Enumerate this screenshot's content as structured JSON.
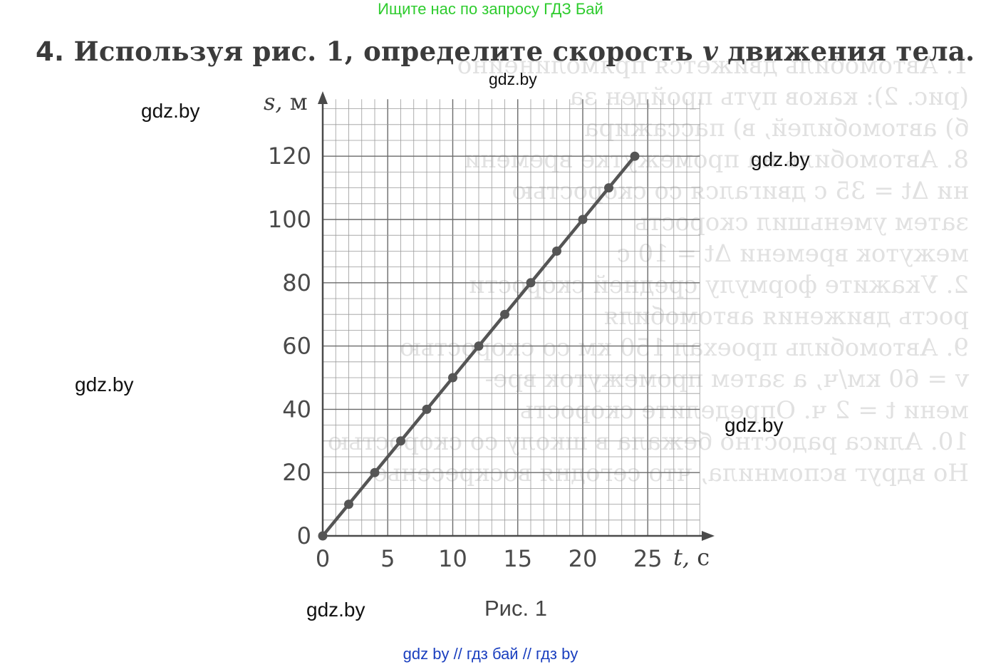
{
  "banner": "Ищите нас по запросу ГДЗ Бай",
  "task": {
    "number": "4.",
    "text": "Используя рис. 1, определите скорость",
    "variable": "v",
    "text_end": "движения тела."
  },
  "watermarks": [
    "gdz.by",
    "gdz.by",
    "gdz.by",
    "gdz.by",
    "gdz.by",
    "gdz.by"
  ],
  "footer": "gdz by  //  гдз бай  //  гдз by",
  "caption": "Рис. 1",
  "chart_data": {
    "type": "line",
    "xlabel_var": "t,",
    "xlabel_unit": "с",
    "ylabel_var": "s,",
    "ylabel_unit": "м",
    "xlim": [
      0,
      30
    ],
    "ylim": [
      0,
      140
    ],
    "x_ticks": [
      "0",
      "5",
      "10",
      "15",
      "20",
      "25"
    ],
    "y_ticks": [
      "0",
      "20",
      "40",
      "60",
      "80",
      "100",
      "120"
    ],
    "grid": true,
    "series": [
      {
        "x": [
          0,
          2,
          4,
          6,
          8,
          10,
          12,
          14,
          16,
          18,
          20,
          22,
          24
        ],
        "y": [
          0,
          10,
          20,
          30,
          40,
          50,
          60,
          70,
          80,
          90,
          100,
          110,
          120
        ]
      }
    ],
    "color": "#555555"
  },
  "ghost_lines": [
    "1. Автомобиль движется прямолинейно",
    "(рис. 2): каков путь пройден за",
    "б) автомобилей, в) пассажира",
    "8. Автомобиль на промежутке времени",
    "ни Δt = 35 с двигался со скоростью",
    "затем уменьшил скорость",
    "межуток времени Δt = 10 с",
    "2. Укажите формулу средней скорости",
    "рость движения автомобиля",
    "9. Автомобиль проехал 150 км со скоростью",
    "v = 60 км/ч, а затем промежуток вре-",
    "мени t = 2 ч. Определите скорость",
    "10. Алиса радостно бежала в школу со скоростью",
    "Но вдруг вспомнила, что сегодня воскресенье."
  ]
}
